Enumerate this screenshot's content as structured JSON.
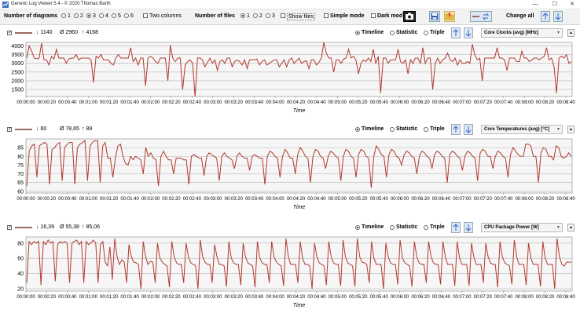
{
  "window": {
    "title": "Generic Log Viewer 5.4 - © 2020 Thomas Barth",
    "minimize": "—",
    "maximize": "☐",
    "close": "✕"
  },
  "toolbar": {
    "num_diagrams_label": "Number of diagrams",
    "diagram_options": [
      "1",
      "2",
      "3",
      "4",
      "5",
      "6"
    ],
    "diagram_selected": "3",
    "two_columns_label": "Two columns",
    "num_files_label": "Number of files",
    "file_options": [
      "1",
      "2",
      "3"
    ],
    "file_selected": "1",
    "show_files_label": "Show files",
    "simple_mode_label": "Simple mode",
    "dark_mode_label": "Dark mod",
    "change_all_label": "Change all"
  },
  "time_axis": {
    "label": "Time",
    "ticks": [
      "00:00:00",
      "00:00:20",
      "00:00:40",
      "00:01:00",
      "00:01:20",
      "00:01:40",
      "00:02:00",
      "00:02:20",
      "00:02:40",
      "00:03:00",
      "00:03:20",
      "00:03:40",
      "00:04:00",
      "00:04:20",
      "00:04:40",
      "00:05:00",
      "00:05:20",
      "00:05:40",
      "00:06:00",
      "00:06:20",
      "00:06:40",
      "00:07:00",
      "00:07:20",
      "00:07:40",
      "00:08:00",
      "00:08:20",
      "00:08:40"
    ]
  },
  "view_modes": [
    "Timeline",
    "Statistic",
    "Triple"
  ],
  "panels": [
    {
      "min": "↓ 1140",
      "avg": "Ø 2960",
      "max": "↑ 4168",
      "sensor": "Core Clocks (avg) [MHz]",
      "selected_mode": "Timeline",
      "yticks": [
        "4000",
        "3500",
        "3000",
        "2500",
        "2000",
        "1500"
      ]
    },
    {
      "min": "↓ 60",
      "avg": "Ø 78,65",
      "max": "↑ 89",
      "sensor": "Core Temperatures (avg) [°C]",
      "selected_mode": "Timeline",
      "yticks": [
        "85",
        "80",
        "75",
        "70",
        "65",
        "60"
      ]
    },
    {
      "min": "↓ 16,39",
      "avg": "Ø 55,38",
      "max": "↑ 85,06",
      "sensor": "CPU Package Power [W]",
      "selected_mode": "Timeline",
      "yticks": [
        "80",
        "60",
        "40",
        "20"
      ]
    }
  ],
  "chart_data": [
    {
      "type": "line",
      "title": "Core Clocks (avg) [MHz]",
      "xlabel": "Time",
      "ylabel": "",
      "ylim": [
        1100,
        4200
      ],
      "grid": true,
      "line_color": "#b03a2e",
      "series": [
        {
          "values": [
            3300,
            4000,
            3700,
            3300,
            3250,
            3300,
            4150,
            3200,
            3200,
            2900,
            3400,
            3250,
            3800,
            3300,
            3300,
            3300,
            3000,
            3250,
            3300,
            3300,
            3500,
            3200,
            3300,
            3300,
            3300,
            3300,
            3200,
            1900,
            3400,
            3300,
            3500,
            3200,
            3200,
            3200,
            3000,
            2900,
            3300,
            3500,
            3300,
            3300,
            3300,
            3300,
            3900,
            3100,
            3300,
            2900,
            3300,
            3300,
            1700,
            3300,
            3400,
            3300,
            3100,
            3000,
            3300,
            3300,
            3300,
            2000,
            4050,
            3300,
            3100,
            3300,
            3300,
            1500,
            2900,
            3100,
            3200,
            3000,
            1100,
            3300,
            3300,
            3200,
            2800,
            3050,
            3300,
            3000,
            3200,
            2600,
            3100,
            3200,
            3000,
            3300,
            3300,
            2800,
            3100,
            3200,
            3100,
            2900,
            3200,
            2700,
            3200,
            3200,
            3200,
            3250,
            2900,
            3100,
            3200,
            2900,
            3000,
            3100,
            3200,
            3200,
            2800,
            3000,
            3200,
            2800,
            3200,
            3300,
            3000,
            3150,
            3300,
            3000,
            3100,
            3150,
            2700,
            3200,
            3200,
            2900,
            3050,
            3300,
            4200,
            3600,
            3300,
            3300,
            2500,
            3200,
            3200,
            3000,
            3250,
            3300,
            3800,
            3300,
            3400,
            3200,
            2400,
            3000,
            3200,
            3100,
            3300,
            3100,
            3800,
            3000,
            3400,
            1300,
            3300,
            3300,
            3000,
            3200,
            3200,
            3200,
            3800,
            3100,
            3000,
            3200,
            2400,
            3200,
            3000,
            3300,
            3300,
            3000,
            3900,
            3000,
            3300,
            3300,
            1500,
            3000,
            3300,
            3000,
            3200,
            3300,
            3600,
            3200,
            3100,
            3300,
            2900,
            3200,
            3000,
            3000,
            3100,
            3000,
            4100,
            3500,
            3200,
            3300,
            2000,
            3300,
            3300,
            3300,
            3300,
            3300,
            3900,
            3300,
            3300,
            3200,
            2600,
            3300,
            3300,
            3300,
            3100,
            3100,
            3700,
            3300,
            3300,
            3100,
            3200,
            3300,
            3300,
            3200,
            3300,
            3400,
            3900,
            3200,
            3300,
            2800,
            1300,
            3300,
            3400,
            3300,
            3500,
            3000,
            3100
          ]
        }
      ]
    },
    {
      "type": "line",
      "title": "Core Temperatures (avg) [°C]",
      "xlabel": "Time",
      "ylabel": "",
      "ylim": [
        59,
        90
      ],
      "grid": true,
      "line_color": "#b03a2e",
      "series": [
        {
          "values": [
            63,
            83,
            86,
            87,
            68,
            86,
            87,
            88,
            87,
            64,
            84,
            85,
            87,
            88,
            66,
            85,
            87,
            88,
            88,
            64,
            85,
            87,
            88,
            89,
            66,
            86,
            88,
            89,
            89,
            65,
            86,
            88,
            79,
            79,
            68,
            79,
            86,
            87,
            80,
            76,
            75,
            80,
            78,
            80,
            79,
            78,
            70,
            85,
            80,
            82,
            79,
            78,
            63,
            80,
            83,
            80,
            78,
            78,
            70,
            79,
            79,
            79,
            78,
            78,
            64,
            80,
            81,
            80,
            79,
            79,
            69,
            80,
            82,
            81,
            80,
            79,
            66,
            80,
            82,
            80,
            79,
            78,
            73,
            80,
            82,
            80,
            79,
            79,
            72,
            80,
            81,
            80,
            79,
            79,
            64,
            80,
            83,
            82,
            80,
            79,
            68,
            80,
            84,
            82,
            79,
            79,
            70,
            81,
            85,
            83,
            80,
            79,
            65,
            80,
            84,
            83,
            80,
            79,
            73,
            80,
            83,
            82,
            80,
            79,
            66,
            80,
            84,
            83,
            80,
            79,
            68,
            81,
            84,
            83,
            80,
            79,
            62,
            80,
            86,
            84,
            81,
            80,
            68,
            81,
            84,
            83,
            80,
            79,
            75,
            81,
            83,
            82,
            80,
            79,
            70,
            80,
            83,
            82,
            80,
            79,
            73,
            81,
            83,
            82,
            80,
            79,
            65,
            81,
            83,
            82,
            80,
            79,
            72,
            80,
            83,
            82,
            80,
            79,
            66,
            82,
            84,
            83,
            80,
            80,
            73,
            80,
            83,
            82,
            80,
            79,
            68,
            81,
            85,
            83,
            81,
            80,
            80,
            87,
            87,
            86,
            80,
            80,
            65,
            82,
            85,
            84,
            80,
            80,
            78,
            86,
            85,
            80,
            79,
            80,
            82,
            80
          ]
        }
      ]
    },
    {
      "type": "line",
      "title": "CPU Package Power [W]",
      "xlabel": "Time",
      "ylabel": "",
      "ylim": [
        17,
        88
      ],
      "grid": true,
      "line_color": "#b03a2e",
      "series": [
        {
          "values": [
            28,
            82,
            78,
            82,
            80,
            82,
            25,
            82,
            78,
            84,
            80,
            82,
            30,
            78,
            82,
            80,
            82,
            80,
            28,
            80,
            82,
            84,
            78,
            82,
            28,
            82,
            78,
            80,
            84,
            80,
            28,
            78,
            82,
            55,
            50,
            75,
            32,
            86,
            62,
            52,
            58,
            55,
            28,
            78,
            62,
            55,
            54,
            52,
            20,
            82,
            62,
            52,
            56,
            55,
            28,
            80,
            60,
            55,
            52,
            50,
            22,
            82,
            62,
            54,
            52,
            52,
            28,
            80,
            62,
            54,
            52,
            50,
            20,
            84,
            62,
            55,
            52,
            52,
            28,
            78,
            62,
            52,
            52,
            50,
            23,
            82,
            60,
            54,
            52,
            52,
            25,
            80,
            62,
            54,
            52,
            50,
            22,
            82,
            60,
            54,
            52,
            52,
            28,
            82,
            62,
            55,
            52,
            50,
            24,
            86,
            62,
            52,
            52,
            52,
            28,
            82,
            60,
            52,
            52,
            50,
            20,
            80,
            62,
            54,
            52,
            50,
            25,
            82,
            62,
            54,
            52,
            52,
            24,
            84,
            62,
            54,
            52,
            50,
            23,
            86,
            62,
            55,
            54,
            52,
            28,
            82,
            60,
            52,
            52,
            52,
            20,
            80,
            62,
            54,
            52,
            52,
            26,
            84,
            60,
            54,
            52,
            50,
            23,
            82,
            62,
            54,
            52,
            52,
            28,
            82,
            62,
            54,
            52,
            52,
            26,
            82,
            62,
            52,
            52,
            52,
            24,
            82,
            60,
            52,
            52,
            52,
            24,
            80,
            62,
            52,
            52,
            52,
            28,
            80,
            62,
            54,
            52,
            52,
            22,
            82,
            62,
            54,
            52,
            50,
            26,
            84,
            62,
            52,
            52,
            52,
            25,
            80,
            60,
            52,
            52,
            52,
            23,
            82,
            60,
            52,
            52,
            52,
            20,
            86,
            62,
            52,
            50,
            55,
            55,
            55
          ]
        }
      ]
    }
  ]
}
